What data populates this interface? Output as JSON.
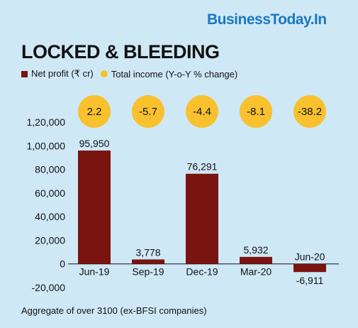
{
  "brand": "BusinessToday.In",
  "colors": {
    "background": "#cfe8f6",
    "brand": "#1a78c2",
    "bar": "#7a1411",
    "circle": "#f8c12d"
  },
  "chart_data": {
    "type": "bar",
    "title": "LOCKED & BLEEDING",
    "legend": [
      {
        "label": "Net profit (₹ cr)",
        "marker": "square"
      },
      {
        "label": "Total income (Y-o-Y % change)",
        "marker": "circle"
      }
    ],
    "categories": [
      "Jun-19",
      "Sep-19",
      "Dec-19",
      "Mar-20",
      "Jun-20"
    ],
    "series": [
      {
        "name": "Net profit (₹ cr)",
        "values": [
          95950,
          3778,
          76291,
          5932,
          -6911
        ],
        "labels": [
          "95,950",
          "3,778",
          "76,291",
          "5,932",
          "-6,911"
        ]
      },
      {
        "name": "Total income (Y-o-Y % change)",
        "values": [
          2.2,
          -5.7,
          -4.4,
          -8.1,
          -38.2
        ],
        "labels": [
          "2.2",
          "-5.7",
          "-4.4",
          "-8.1",
          "-38.2"
        ]
      }
    ],
    "ylim": [
      -20000,
      120000
    ],
    "yticks": [
      -20000,
      0,
      20000,
      40000,
      60000,
      80000,
      100000,
      120000
    ],
    "ytick_labels": [
      "-20,000",
      "0",
      "20,000",
      "40,000",
      "60,000",
      "80,000",
      "1,00,000",
      "1,20,000"
    ],
    "legend_position": "top-left",
    "grid": false
  },
  "footnote": "Aggregate of over 3100 (ex-BFSI companies)"
}
